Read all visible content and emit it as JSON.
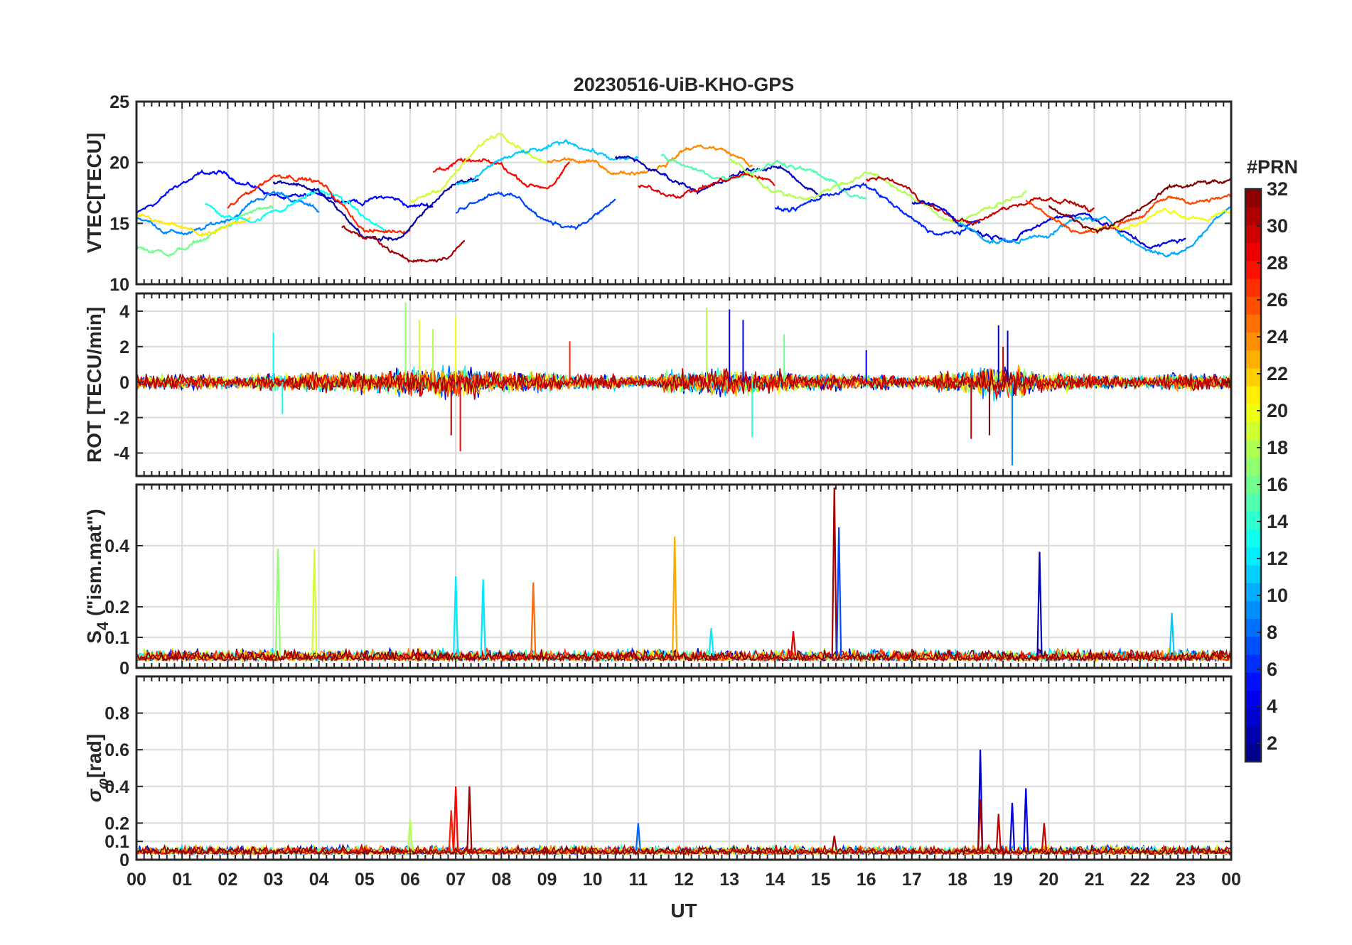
{
  "chart_data": {
    "type": "line",
    "title": "20230516-UiB-KHO-GPS",
    "xlabel": "UT",
    "x_tick_labels": [
      "00",
      "01",
      "02",
      "03",
      "04",
      "05",
      "06",
      "07",
      "08",
      "09",
      "10",
      "11",
      "12",
      "13",
      "14",
      "15",
      "16",
      "17",
      "18",
      "19",
      "20",
      "21",
      "22",
      "23",
      "00"
    ],
    "xlim_hours": [
      0,
      24
    ],
    "grid": true,
    "colorbar": {
      "title": "#PRN",
      "range": [
        1,
        32
      ],
      "tick_labels": [
        "2",
        "4",
        "6",
        "8",
        "10",
        "12",
        "14",
        "16",
        "18",
        "20",
        "22",
        "24",
        "26",
        "28",
        "30",
        "32"
      ],
      "colormap": "jet",
      "placement": "right"
    },
    "panels": [
      {
        "id": "vtec",
        "ylabel": "VTEC[TECU]",
        "ylim": [
          10,
          25
        ],
        "y_ticks": [
          10,
          15,
          20,
          25
        ],
        "y_tick_labels": [
          "10",
          "15",
          "20",
          "25"
        ],
        "baseline": [
          [
            0,
            16.5
          ],
          [
            1,
            17.2
          ],
          [
            2,
            17.0
          ],
          [
            3,
            17.8
          ],
          [
            4,
            17.5
          ],
          [
            5,
            15.5
          ],
          [
            6,
            15.3
          ],
          [
            7,
            17.5
          ],
          [
            8,
            18.8
          ],
          [
            9,
            17.5
          ],
          [
            10,
            18.8
          ],
          [
            11,
            19.5
          ],
          [
            12,
            19.6
          ],
          [
            13,
            18.6
          ],
          [
            14,
            18.2
          ],
          [
            15,
            17.6
          ],
          [
            16,
            17.2
          ],
          [
            17,
            16.0
          ],
          [
            18,
            15.8
          ],
          [
            19,
            16.2
          ],
          [
            20,
            15.6
          ],
          [
            21,
            15.2
          ],
          [
            22,
            14.8
          ],
          [
            23,
            15.5
          ],
          [
            24,
            17.6
          ]
        ],
        "series": [
          {
            "prn": 5,
            "start": 0.0,
            "end": 6.5,
            "offset": 0.5
          },
          {
            "prn": 9,
            "start": 0.0,
            "end": 4.0,
            "offset": -1.5
          },
          {
            "prn": 16,
            "start": 0.0,
            "end": 3.0,
            "offset": -3.0
          },
          {
            "prn": 21,
            "start": 0.0,
            "end": 2.5,
            "offset": -2.2
          },
          {
            "prn": 13,
            "start": 1.5,
            "end": 5.5,
            "offset": -0.8
          },
          {
            "prn": 27,
            "start": 2.0,
            "end": 6.0,
            "offset": 0.3
          },
          {
            "prn": 2,
            "start": 3.0,
            "end": 7.5,
            "offset": -0.5
          },
          {
            "prn": 31,
            "start": 4.5,
            "end": 7.2,
            "offset": -3.0
          },
          {
            "prn": 28,
            "start": 6.5,
            "end": 9.5,
            "offset": 1.5
          },
          {
            "prn": 19,
            "start": 6.0,
            "end": 9.0,
            "offset": 2.5
          },
          {
            "prn": 7,
            "start": 7.0,
            "end": 10.5,
            "offset": -1.8
          },
          {
            "prn": 11,
            "start": 7.0,
            "end": 11.0,
            "offset": 1.8
          },
          {
            "prn": 24,
            "start": 9.0,
            "end": 13.5,
            "offset": 1.2
          },
          {
            "prn": 3,
            "start": 10.5,
            "end": 15.0,
            "offset": 0.0
          },
          {
            "prn": 15,
            "start": 11.5,
            "end": 16.0,
            "offset": 1.0
          },
          {
            "prn": 29,
            "start": 11.0,
            "end": 14.0,
            "offset": -0.8
          },
          {
            "prn": 18,
            "start": 13.0,
            "end": 19.5,
            "offset": 0.8
          },
          {
            "prn": 6,
            "start": 14.0,
            "end": 18.5,
            "offset": -0.6
          },
          {
            "prn": 30,
            "start": 16.0,
            "end": 21.0,
            "offset": 0.5
          },
          {
            "prn": 4,
            "start": 17.0,
            "end": 23.0,
            "offset": -0.6
          },
          {
            "prn": 10,
            "start": 18.0,
            "end": 24.0,
            "offset": -1.2
          },
          {
            "prn": 26,
            "start": 19.5,
            "end": 24.0,
            "offset": 0.4
          },
          {
            "prn": 20,
            "start": 21.0,
            "end": 24.0,
            "offset": 0.1
          },
          {
            "prn": 32,
            "start": 20.0,
            "end": 24.0,
            "offset": 0.9
          }
        ]
      },
      {
        "id": "rot",
        "ylabel": "ROT [TECU/min]",
        "ylim": [
          -5.3,
          5
        ],
        "y_ticks": [
          -4,
          -2,
          0,
          2,
          4
        ],
        "y_tick_labels": [
          "-4",
          "-2",
          "0",
          "2",
          "4"
        ],
        "spikes": [
          [
            3.0,
            2.8,
            13
          ],
          [
            3.2,
            -1.8,
            13
          ],
          [
            5.9,
            4.5,
            17
          ],
          [
            6.2,
            3.5,
            19
          ],
          [
            7.0,
            3.7,
            20
          ],
          [
            7.1,
            -3.9,
            28
          ],
          [
            6.9,
            -3.0,
            31
          ],
          [
            6.5,
            3.0,
            18
          ],
          [
            12.5,
            4.2,
            18
          ],
          [
            13.0,
            4.1,
            5
          ],
          [
            13.3,
            3.5,
            5
          ],
          [
            13.5,
            -3.1,
            14
          ],
          [
            14.2,
            2.7,
            16
          ],
          [
            18.3,
            -3.2,
            30
          ],
          [
            18.9,
            3.2,
            3
          ],
          [
            19.1,
            2.9,
            3
          ],
          [
            19.2,
            -4.7,
            9
          ],
          [
            18.7,
            -3.0,
            32
          ],
          [
            19.0,
            2.0,
            30
          ],
          [
            9.5,
            2.3,
            27
          ],
          [
            16.0,
            1.8,
            5
          ]
        ],
        "noise_amplitude_by_hour": [
          0.6,
          0.6,
          0.5,
          0.7,
          0.8,
          0.9,
          1.1,
          1.3,
          0.9,
          0.8,
          0.6,
          0.5,
          0.9,
          1.1,
          0.9,
          0.7,
          0.6,
          0.5,
          0.9,
          1.3,
          0.8,
          0.6,
          0.5,
          0.7,
          0.6
        ]
      },
      {
        "id": "s4",
        "ylabel": "S4 (\"ism.mat\")",
        "ylabel_main": "S",
        "ylabel_sub": "4",
        "ylabel_rest": " (\"ism.mat\")",
        "ylim": [
          0,
          0.6
        ],
        "y_ticks": [
          0,
          0.1,
          0.2,
          0.4
        ],
        "y_tick_labels": [
          "0",
          "0.1",
          "0.2",
          "0.4"
        ],
        "spikes": [
          [
            3.1,
            0.39,
            17
          ],
          [
            3.9,
            0.39,
            19
          ],
          [
            7.0,
            0.3,
            12
          ],
          [
            7.6,
            0.29,
            12
          ],
          [
            8.7,
            0.28,
            25
          ],
          [
            11.8,
            0.43,
            23
          ],
          [
            15.3,
            0.59,
            31
          ],
          [
            15.4,
            0.46,
            7
          ],
          [
            19.8,
            0.38,
            3
          ],
          [
            22.7,
            0.18,
            11
          ],
          [
            12.6,
            0.13,
            12
          ],
          [
            14.4,
            0.12,
            29
          ]
        ],
        "noise_level": 0.04
      },
      {
        "id": "sigma_phi",
        "ylabel": "σφ[rad]",
        "ylabel_main": "σ",
        "ylabel_sub": "φ",
        "ylabel_rest": "[rad]",
        "ylim": [
          0,
          1.0
        ],
        "y_ticks": [
          0,
          0.1,
          0.2,
          0.4,
          0.6,
          0.8
        ],
        "y_tick_labels": [
          "0",
          "0.1",
          "0.2",
          "0.4",
          "0.6",
          "0.8"
        ],
        "spikes": [
          [
            6.0,
            0.22,
            18
          ],
          [
            6.9,
            0.27,
            27
          ],
          [
            7.0,
            0.4,
            28
          ],
          [
            7.3,
            0.4,
            31
          ],
          [
            11.0,
            0.2,
            8
          ],
          [
            18.5,
            0.6,
            3
          ],
          [
            18.5,
            0.33,
            31
          ],
          [
            18.9,
            0.25,
            30
          ],
          [
            19.2,
            0.31,
            4
          ],
          [
            19.5,
            0.39,
            4
          ],
          [
            19.9,
            0.2,
            30
          ],
          [
            15.3,
            0.13,
            31
          ]
        ],
        "noise_level": 0.05
      }
    ]
  }
}
